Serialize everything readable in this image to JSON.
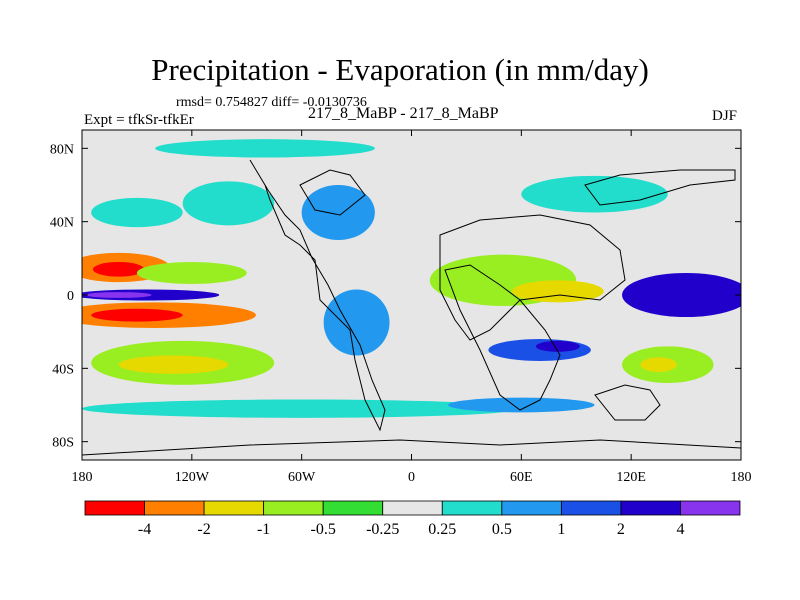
{
  "title": "Precipitation - Evaporation (in mm/day)",
  "stats": "rmsd= 0.754827 diff= -0.0130736",
  "experiment": "Expt = tfkSr-tfkEr",
  "case": "217_8_MaBP - 217_8_MaBP",
  "season": "DJF",
  "chart_data": {
    "type": "heatmap",
    "title": "Precipitation - Evaporation (in mm/day)",
    "xlabel": "",
    "ylabel": "",
    "xlim": [
      -180,
      180
    ],
    "ylim": [
      -90,
      90
    ],
    "x_ticks": [
      {
        "value": -180,
        "label": "180"
      },
      {
        "value": -120,
        "label": "120W"
      },
      {
        "value": -60,
        "label": "60W"
      },
      {
        "value": 0,
        "label": "0"
      },
      {
        "value": 60,
        "label": "60E"
      },
      {
        "value": 120,
        "label": "120E"
      },
      {
        "value": 180,
        "label": "180"
      }
    ],
    "y_ticks": [
      {
        "value": 80,
        "label": "80N"
      },
      {
        "value": 40,
        "label": "40N"
      },
      {
        "value": 0,
        "label": "0"
      },
      {
        "value": -40,
        "label": "40S"
      },
      {
        "value": -80,
        "label": "80S"
      }
    ],
    "colorbar": {
      "levels": [
        "-4",
        "-2",
        "-1",
        "-0.5",
        "-0.25",
        "0.25",
        "0.5",
        "1",
        "2",
        "4"
      ],
      "colors": [
        "#ff0000",
        "#ff8000",
        "#e6d900",
        "#99ee22",
        "#33dd33",
        "#e6e6e6",
        "#22ddcc",
        "#2299ee",
        "#1a50e6",
        "#2200cc",
        "#8833ee"
      ]
    },
    "regions": [
      {
        "name": "north-pacific-north-band",
        "lon": -160,
        "lat": 15,
        "rx": 28,
        "ry": 8,
        "value": -2.5
      },
      {
        "name": "north-pacific-north-band-core",
        "lon": -160,
        "lat": 14,
        "rx": 14,
        "ry": 4,
        "value": -4.5
      },
      {
        "name": "north-pacific-tail",
        "lon": -120,
        "lat": 12,
        "rx": 30,
        "ry": 6,
        "value": -0.6
      },
      {
        "name": "equatorial-pacific-wet-belt",
        "lon": -145,
        "lat": 0,
        "rx": 40,
        "ry": 3,
        "value": 3
      },
      {
        "name": "equatorial-pacific-wet-core",
        "lon": -160,
        "lat": 0,
        "rx": 18,
        "ry": 1.6,
        "value": 5
      },
      {
        "name": "south-pacific-dry-band",
        "lon": -140,
        "lat": -11,
        "rx": 55,
        "ry": 7,
        "value": -2.5
      },
      {
        "name": "south-pacific-dry-core",
        "lon": -150,
        "lat": -11,
        "rx": 25,
        "ry": 3.5,
        "value": -4.5
      },
      {
        "name": "south-pacific-green-tail",
        "lon": -125,
        "lat": -37,
        "rx": 50,
        "ry": 12,
        "value": -0.6
      },
      {
        "name": "south-pacific-outer-yellow",
        "lon": -130,
        "lat": -38,
        "rx": 30,
        "ry": 5,
        "value": -1.5
      },
      {
        "name": "south-atlantic-blue",
        "lon": -30,
        "lat": -15,
        "rx": 18,
        "ry": 18,
        "value": 0.8
      },
      {
        "name": "north-atlantic-storm-blue",
        "lon": -40,
        "lat": 45,
        "rx": 20,
        "ry": 15,
        "value": 0.7
      },
      {
        "name": "north-america-cyan",
        "lon": -100,
        "lat": 50,
        "rx": 25,
        "ry": 12,
        "value": 0.35
      },
      {
        "name": "africa-green",
        "lon": 50,
        "lat": 8,
        "rx": 40,
        "ry": 14,
        "value": -0.6
      },
      {
        "name": "africa-yellow",
        "lon": 80,
        "lat": 2,
        "rx": 25,
        "ry": 6,
        "value": -1.5
      },
      {
        "name": "indian-ocean-blue",
        "lon": 70,
        "lat": -30,
        "rx": 28,
        "ry": 6,
        "value": 1.5
      },
      {
        "name": "indian-ocean-deep",
        "lon": 80,
        "lat": -28,
        "rx": 12,
        "ry": 3,
        "value": 2.5
      },
      {
        "name": "west-pacific-blue",
        "lon": 150,
        "lat": 0,
        "rx": 35,
        "ry": 12,
        "value": 2
      },
      {
        "name": "west-pacific-deep",
        "lon": 165,
        "lat": -2,
        "rx": 18,
        "ry": 5,
        "value": 3.5
      },
      {
        "name": "south-indian-green",
        "lon": 140,
        "lat": -38,
        "rx": 25,
        "ry": 10,
        "value": -0.6
      },
      {
        "name": "south-indian-yellow",
        "lon": 135,
        "lat": -38,
        "rx": 10,
        "ry": 4,
        "value": -1.5
      },
      {
        "name": "asia-cyan",
        "lon": 100,
        "lat": 55,
        "rx": 40,
        "ry": 10,
        "value": 0.35
      },
      {
        "name": "arctic-cyan",
        "lon": -80,
        "lat": 80,
        "rx": 60,
        "ry": 5,
        "value": 0.35
      },
      {
        "name": "southern-ocean-cyan",
        "lon": -60,
        "lat": -62,
        "rx": 120,
        "ry": 5,
        "value": 0.4
      },
      {
        "name": "southern-ocean-blue",
        "lon": 60,
        "lat": -60,
        "rx": 40,
        "ry": 4,
        "value": 0.8
      },
      {
        "name": "north-pacific-cyan",
        "lon": -150,
        "lat": 45,
        "rx": 25,
        "ry": 8,
        "value": 0.4
      }
    ]
  }
}
